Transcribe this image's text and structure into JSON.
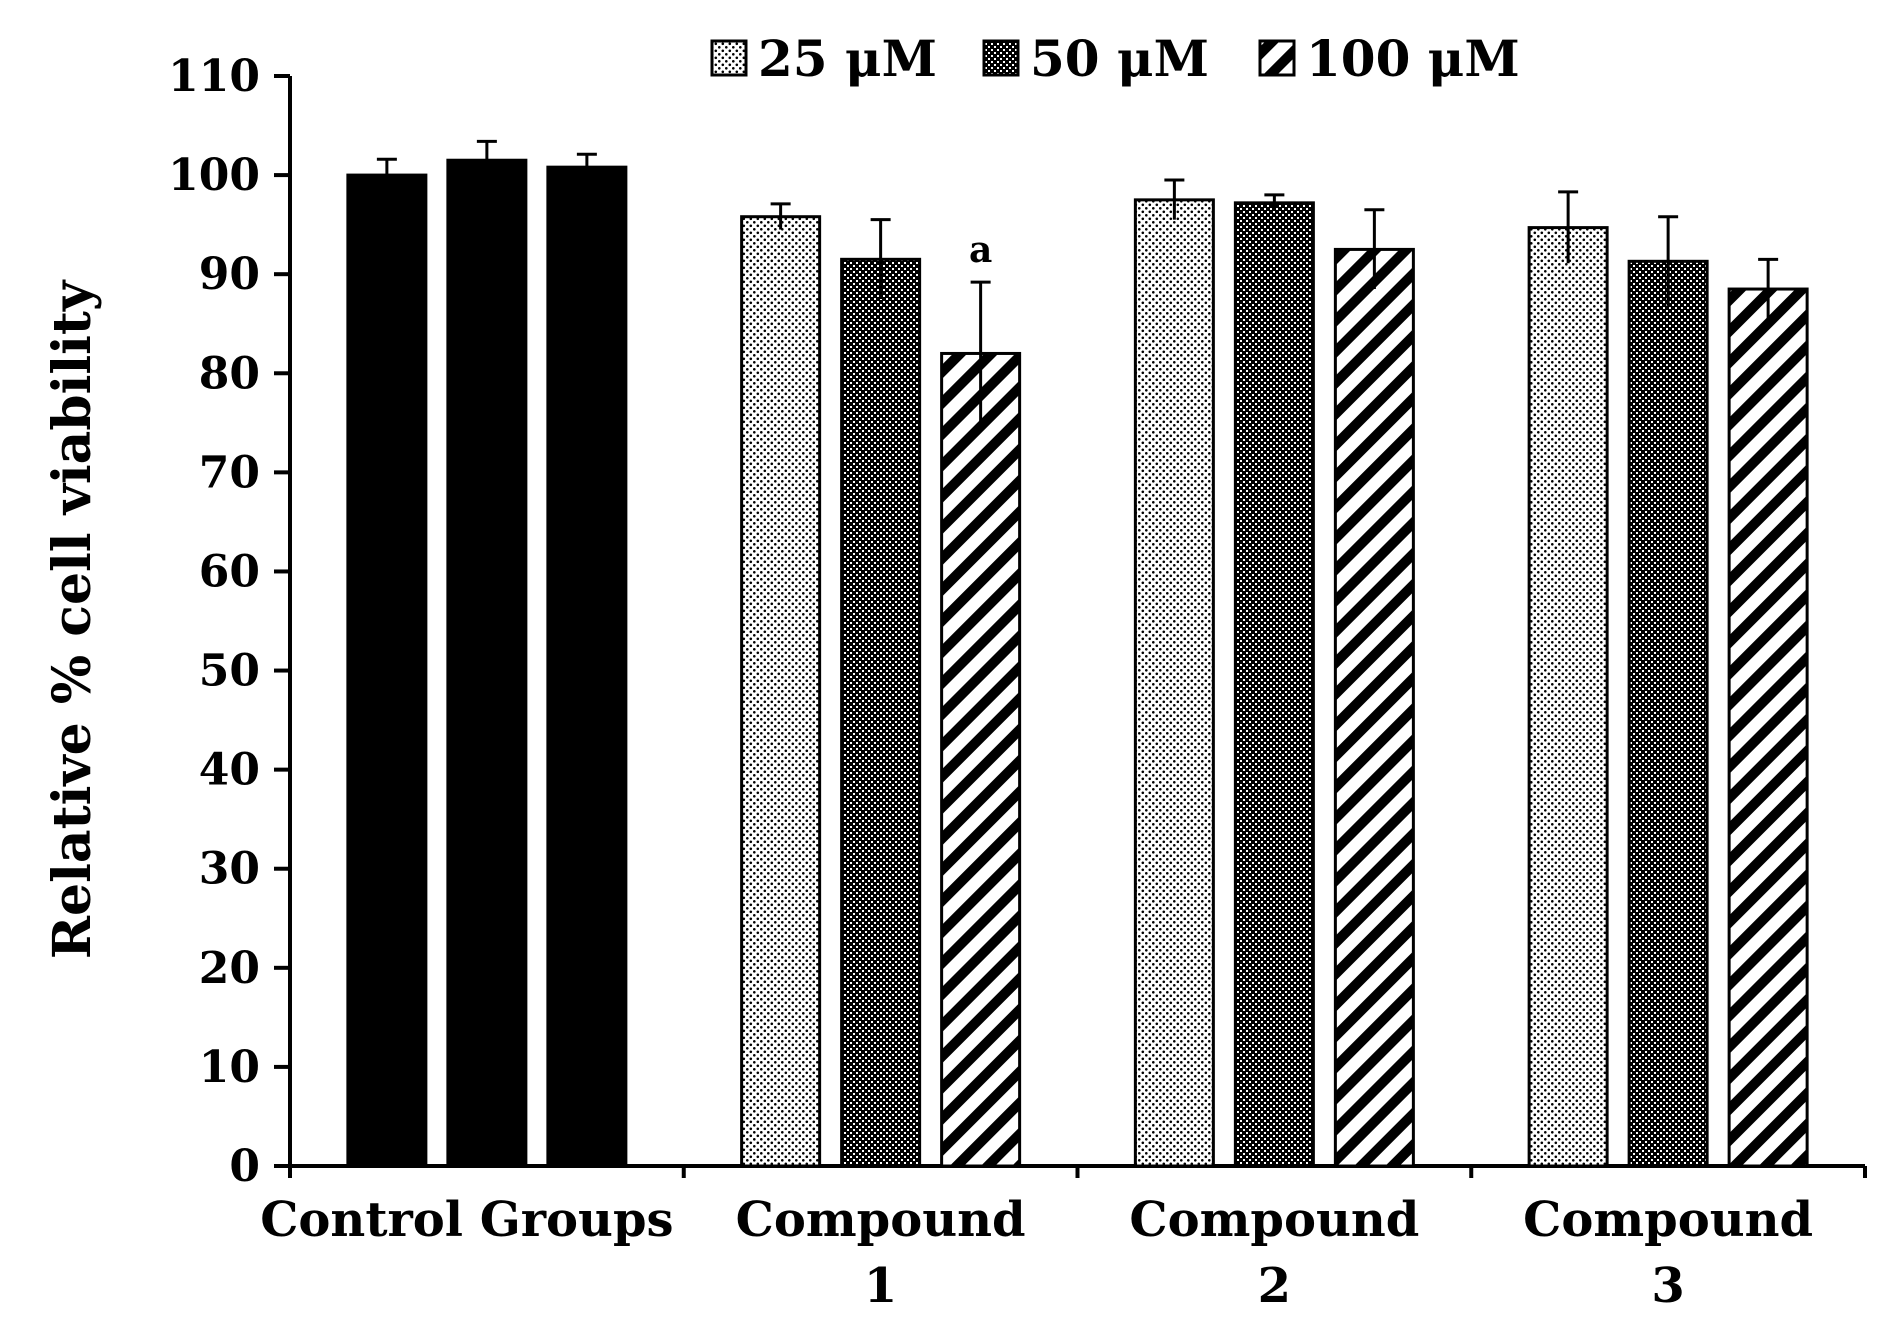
{
  "chart_data": {
    "type": "bar",
    "title": "",
    "xlabel": "",
    "ylabel": "Relative % cell viability",
    "ylim": [
      0,
      110
    ],
    "yticks": [
      0,
      10,
      20,
      30,
      40,
      50,
      60,
      70,
      80,
      90,
      100,
      110
    ],
    "categories": [
      {
        "lines": [
          "Control Groups"
        ]
      },
      {
        "lines": [
          "Compound",
          "1"
        ]
      },
      {
        "lines": [
          "Compound",
          "2"
        ]
      },
      {
        "lines": [
          "Compound",
          "3"
        ]
      }
    ],
    "legend": {
      "position": "top",
      "entries": [
        {
          "label": "25 μM",
          "pattern": "dots"
        },
        {
          "label": "50 μM",
          "pattern": "dense-dots"
        },
        {
          "label": "100 μM",
          "pattern": "diagonal-stripes"
        }
      ]
    },
    "series": [
      {
        "name": "25 μM",
        "values": [
          100,
          95.8,
          97.5,
          94.7
        ],
        "errors": [
          1.6,
          1.3,
          2.0,
          3.6
        ]
      },
      {
        "name": "50 μM",
        "values": [
          101.5,
          91.5,
          97.2,
          91.3
        ],
        "errors": [
          1.9,
          4.0,
          0.8,
          4.5
        ]
      },
      {
        "name": "100 μM",
        "values": [
          100.8,
          82,
          92.5,
          88.5
        ],
        "errors": [
          1.3,
          7.2,
          4.0,
          3.0
        ]
      }
    ],
    "control_color": "#000000",
    "annotations": [
      {
        "text": "a",
        "category_index": 1,
        "series_index": 2
      }
    ]
  }
}
